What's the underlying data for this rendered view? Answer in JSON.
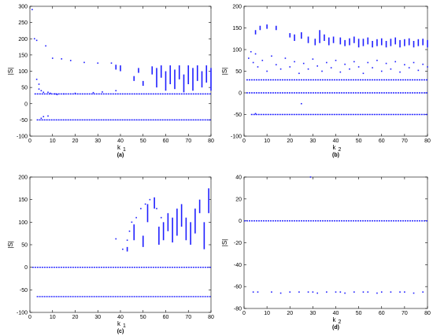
{
  "chart_data": [
    {
      "id": "a",
      "type": "scatter",
      "caption": "(a)",
      "xlabel": "k",
      "xlabel_sub": "1",
      "ylabel": "|S|",
      "xlim": [
        0,
        80
      ],
      "ylim": [
        -100,
        300
      ],
      "xticks": [
        0,
        10,
        20,
        30,
        40,
        50,
        60,
        70,
        80
      ],
      "yticks": [
        -100,
        -50,
        0,
        50,
        100,
        150,
        200,
        250,
        300
      ],
      "color": "#1f1fff",
      "bands": [
        {
          "y": -50,
          "x_start": 3,
          "x_end": 80
        },
        {
          "y": 30,
          "x_start": 2,
          "x_end": 80
        }
      ],
      "points": [
        [
          1,
          290
        ],
        [
          2,
          200
        ],
        [
          3,
          195
        ],
        [
          3,
          75
        ],
        [
          4,
          60
        ],
        [
          4,
          45
        ],
        [
          5,
          40
        ],
        [
          6,
          35
        ],
        [
          7,
          178
        ],
        [
          8,
          35
        ],
        [
          9,
          32
        ],
        [
          10,
          140
        ],
        [
          11,
          30
        ],
        [
          12,
          28
        ],
        [
          14,
          138
        ],
        [
          15,
          30
        ],
        [
          18,
          133
        ],
        [
          20,
          32
        ],
        [
          24,
          127
        ],
        [
          28,
          34
        ],
        [
          30,
          125
        ],
        [
          32,
          36
        ],
        [
          36,
          125
        ],
        [
          38,
          40
        ],
        [
          5,
          -45
        ],
        [
          6,
          -40
        ],
        [
          8,
          -38
        ]
      ],
      "segments": [
        [
          38,
          105,
          120
        ],
        [
          40,
          100,
          118
        ],
        [
          46,
          70,
          85
        ],
        [
          48,
          95,
          110
        ],
        [
          50,
          55,
          70
        ],
        [
          54,
          90,
          115
        ],
        [
          56,
          50,
          110
        ],
        [
          58,
          80,
          118
        ],
        [
          60,
          40,
          100
        ],
        [
          62,
          60,
          118
        ],
        [
          64,
          45,
          105
        ],
        [
          66,
          75,
          118
        ],
        [
          68,
          35,
          90
        ],
        [
          70,
          60,
          118
        ],
        [
          72,
          40,
          110
        ],
        [
          74,
          70,
          118
        ],
        [
          76,
          50,
          100
        ],
        [
          78,
          65,
          118
        ],
        [
          80,
          40,
          110
        ]
      ]
    },
    {
      "id": "b",
      "type": "scatter",
      "caption": "(b)",
      "xlabel": "k",
      "xlabel_sub": "2",
      "ylabel": "|S|",
      "xlim": [
        0,
        80
      ],
      "ylim": [
        -100,
        200
      ],
      "xticks": [
        0,
        10,
        20,
        30,
        40,
        50,
        60,
        70,
        80
      ],
      "yticks": [
        -100,
        -50,
        0,
        50,
        100,
        150,
        200
      ],
      "color": "#1f1fff",
      "bands": [
        {
          "y": -50,
          "x_start": 3,
          "x_end": 80
        },
        {
          "y": 0,
          "x_start": 1,
          "x_end": 80
        },
        {
          "y": 30,
          "x_start": 1,
          "x_end": 80
        }
      ],
      "points": [
        [
          2,
          80
        ],
        [
          3,
          95
        ],
        [
          4,
          70
        ],
        [
          5,
          90
        ],
        [
          6,
          60
        ],
        [
          8,
          75
        ],
        [
          10,
          50
        ],
        [
          12,
          85
        ],
        [
          14,
          65
        ],
        [
          16,
          55
        ],
        [
          18,
          80
        ],
        [
          20,
          60
        ],
        [
          22,
          72
        ],
        [
          24,
          45
        ],
        [
          26,
          68
        ],
        [
          28,
          55
        ],
        [
          30,
          78
        ],
        [
          32,
          62
        ],
        [
          34,
          50
        ],
        [
          36,
          70
        ],
        [
          38,
          58
        ],
        [
          40,
          75
        ],
        [
          42,
          48
        ],
        [
          44,
          66
        ],
        [
          46,
          55
        ],
        [
          48,
          72
        ],
        [
          50,
          60
        ],
        [
          52,
          45
        ],
        [
          54,
          70
        ],
        [
          56,
          58
        ],
        [
          58,
          75
        ],
        [
          60,
          50
        ],
        [
          62,
          68
        ],
        [
          64,
          55
        ],
        [
          66,
          72
        ],
        [
          68,
          48
        ],
        [
          70,
          65
        ],
        [
          72,
          58
        ],
        [
          74,
          70
        ],
        [
          76,
          52
        ],
        [
          78,
          66
        ],
        [
          80,
          60
        ],
        [
          25,
          -25
        ],
        [
          5,
          -48
        ]
      ],
      "segments": [
        [
          5,
          135,
          145
        ],
        [
          7,
          145,
          155
        ],
        [
          10,
          148,
          158
        ],
        [
          14,
          145,
          155
        ],
        [
          20,
          128,
          138
        ],
        [
          22,
          120,
          135
        ],
        [
          25,
          125,
          140
        ],
        [
          28,
          115,
          130
        ],
        [
          31,
          110,
          125
        ],
        [
          33,
          115,
          145
        ],
        [
          35,
          120,
          135
        ],
        [
          37,
          110,
          128
        ],
        [
          39,
          115,
          130
        ],
        [
          42,
          112,
          128
        ],
        [
          44,
          108,
          122
        ],
        [
          46,
          110,
          126
        ],
        [
          48,
          115,
          130
        ],
        [
          50,
          105,
          125
        ],
        [
          52,
          108,
          125
        ],
        [
          54,
          112,
          128
        ],
        [
          56,
          105,
          120
        ],
        [
          58,
          108,
          124
        ],
        [
          60,
          110,
          126
        ],
        [
          62,
          105,
          120
        ],
        [
          64,
          108,
          125
        ],
        [
          66,
          112,
          128
        ],
        [
          68,
          105,
          122
        ],
        [
          70,
          108,
          124
        ],
        [
          72,
          110,
          126
        ],
        [
          74,
          105,
          120
        ],
        [
          76,
          108,
          124
        ],
        [
          78,
          110,
          125
        ],
        [
          80,
          105,
          122
        ]
      ]
    },
    {
      "id": "c",
      "type": "scatter",
      "caption": "(c)",
      "xlabel": "k",
      "xlabel_sub": "1",
      "ylabel": "|S|",
      "xlim": [
        0,
        80
      ],
      "ylim": [
        -100,
        200
      ],
      "xticks": [
        0,
        10,
        20,
        30,
        40,
        50,
        60,
        70,
        80
      ],
      "yticks": [
        -100,
        -50,
        0,
        50,
        100,
        150,
        200
      ],
      "color": "#1f1fff",
      "bands": [
        {
          "y": -65,
          "x_start": 3,
          "x_end": 80
        },
        {
          "y": 0,
          "x_start": 1,
          "x_end": 80
        }
      ],
      "points": [
        [
          38,
          63
        ],
        [
          41,
          40
        ],
        [
          43,
          60
        ],
        [
          44,
          80
        ],
        [
          45,
          100
        ],
        [
          47,
          110
        ],
        [
          49,
          130
        ],
        [
          51,
          140
        ],
        [
          53,
          150
        ],
        [
          56,
          130
        ],
        [
          58,
          110
        ]
      ],
      "segments": [
        [
          43,
          35,
          45
        ],
        [
          46,
          60,
          95
        ],
        [
          50,
          45,
          70
        ],
        [
          52,
          100,
          140
        ],
        [
          55,
          130,
          155
        ],
        [
          57,
          50,
          90
        ],
        [
          59,
          60,
          100
        ],
        [
          61,
          80,
          120
        ],
        [
          63,
          55,
          110
        ],
        [
          65,
          70,
          130
        ],
        [
          67,
          90,
          140
        ],
        [
          69,
          60,
          110
        ],
        [
          71,
          50,
          100
        ],
        [
          73,
          75,
          130
        ],
        [
          75,
          120,
          150
        ],
        [
          77,
          40,
          100
        ],
        [
          79,
          120,
          175
        ]
      ]
    },
    {
      "id": "d",
      "type": "scatter",
      "caption": "(d)",
      "xlabel": "k",
      "xlabel_sub": "2",
      "ylabel": "|S|",
      "xlim": [
        0,
        80
      ],
      "ylim": [
        -80,
        40
      ],
      "xticks": [
        0,
        10,
        20,
        30,
        40,
        50,
        60,
        70,
        80
      ],
      "yticks": [
        -80,
        -60,
        -40,
        -20,
        0,
        20,
        40
      ],
      "color": "#1f1fff",
      "bands": [
        {
          "y": 0,
          "x_start": 0,
          "x_end": 80
        }
      ],
      "points": [
        [
          4,
          -65
        ],
        [
          6,
          -65
        ],
        [
          12,
          -65
        ],
        [
          16,
          -66
        ],
        [
          20,
          -65
        ],
        [
          24,
          -65
        ],
        [
          28,
          -65
        ],
        [
          30,
          -65
        ],
        [
          32,
          -66
        ],
        [
          36,
          -65
        ],
        [
          40,
          -65
        ],
        [
          42,
          -65
        ],
        [
          44,
          -66
        ],
        [
          48,
          -65
        ],
        [
          52,
          -65
        ],
        [
          54,
          -65
        ],
        [
          58,
          -66
        ],
        [
          60,
          -65
        ],
        [
          64,
          -65
        ],
        [
          68,
          -65
        ],
        [
          70,
          -65
        ],
        [
          74,
          -66
        ],
        [
          78,
          -65
        ],
        [
          29,
          40
        ]
      ],
      "segments": []
    }
  ]
}
